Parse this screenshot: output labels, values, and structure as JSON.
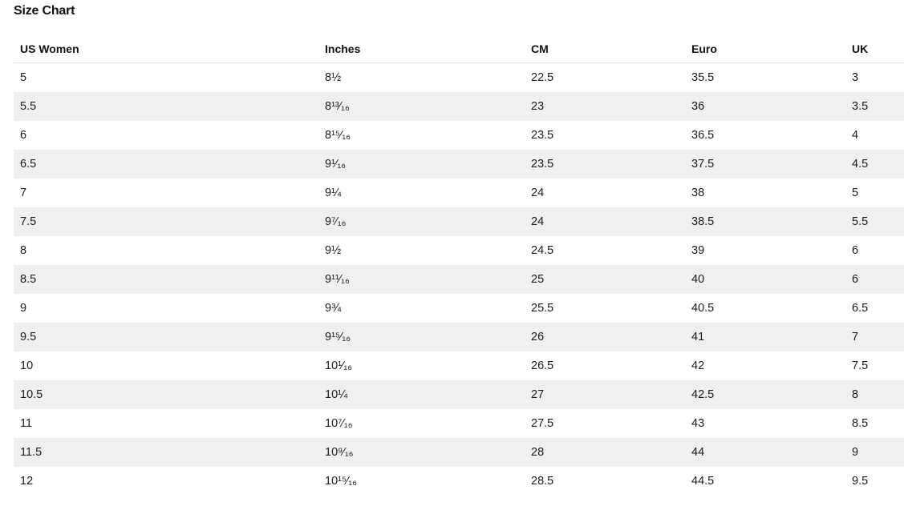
{
  "title": "Size Chart",
  "table": {
    "headers": [
      "US Women",
      "Inches",
      "CM",
      "Euro",
      "UK"
    ],
    "rows": [
      [
        "5",
        "8½",
        "22.5",
        "35.5",
        "3"
      ],
      [
        "5.5",
        "8¹³⁄₁₆",
        "23",
        "36",
        "3.5"
      ],
      [
        "6",
        "8¹⁵⁄₁₆",
        "23.5",
        "36.5",
        "4"
      ],
      [
        "6.5",
        "9¹⁄₁₆",
        "23.5",
        "37.5",
        "4.5"
      ],
      [
        "7",
        "9¼",
        "24",
        "38",
        "5"
      ],
      [
        "7.5",
        "9⁷⁄₁₆",
        "24",
        "38.5",
        "5.5"
      ],
      [
        "8",
        "9½",
        "24.5",
        "39",
        "6"
      ],
      [
        "8.5",
        "9¹¹⁄₁₆",
        "25",
        "40",
        "6"
      ],
      [
        "9",
        "9¾",
        "25.5",
        "40.5",
        "6.5"
      ],
      [
        "9.5",
        "9¹⁵⁄₁₆",
        "26",
        "41",
        "7"
      ],
      [
        "10",
        "10¹⁄₁₆",
        "26.5",
        "42",
        "7.5"
      ],
      [
        "10.5",
        "10¼",
        "27",
        "42.5",
        "8"
      ],
      [
        "11",
        "10⁷⁄₁₆",
        "27.5",
        "43",
        "8.5"
      ],
      [
        "11.5",
        "10⁹⁄₁₆",
        "28",
        "44",
        "9"
      ],
      [
        "12",
        "10¹⁵⁄₁₆",
        "28.5",
        "44.5",
        "9.5"
      ]
    ]
  }
}
